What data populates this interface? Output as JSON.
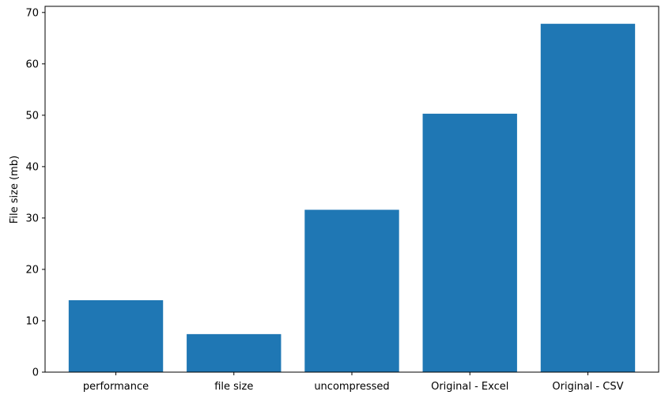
{
  "chart_data": {
    "type": "bar",
    "title": "",
    "xlabel": "",
    "ylabel": "File size (mb)",
    "categories": [
      "performance",
      "file size",
      "uncompressed",
      "Original - Excel",
      "Original - CSV"
    ],
    "values": [
      14.0,
      7.4,
      31.6,
      50.3,
      67.8
    ],
    "ylim": [
      0,
      71.2
    ],
    "yticks": [
      0,
      10,
      20,
      30,
      40,
      50,
      60,
      70
    ],
    "bar_color": "#1f77b4",
    "grid": false
  }
}
